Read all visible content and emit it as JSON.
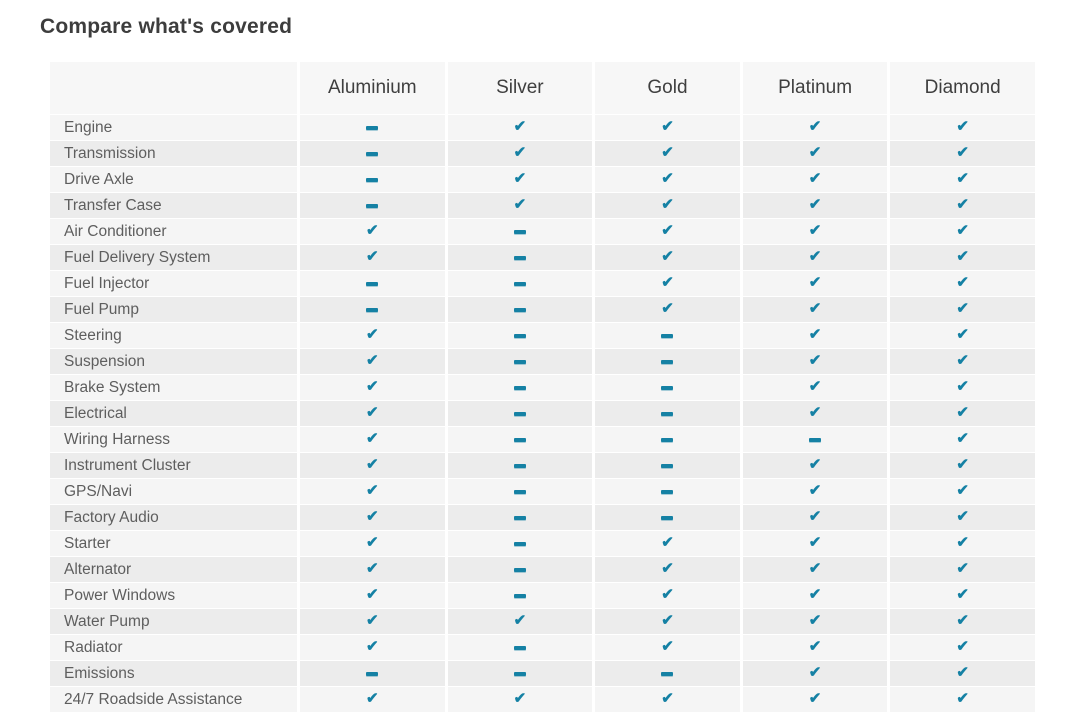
{
  "title": "Compare what's covered",
  "colors": {
    "accent": "#1581a4",
    "header_bg": "#f7f7f7",
    "row_light": "#f5f5f5",
    "row_dark": "#ececec"
  },
  "icons": {
    "check": "check-icon",
    "dash": "dash-icon",
    "check_glyph": "✔"
  },
  "table": {
    "columns": [
      "Aluminium",
      "Silver",
      "Gold",
      "Platinum",
      "Diamond"
    ],
    "rows": [
      {
        "label": "Engine",
        "values": [
          "dash",
          "check",
          "check",
          "check",
          "check"
        ]
      },
      {
        "label": "Transmission",
        "values": [
          "dash",
          "check",
          "check",
          "check",
          "check"
        ]
      },
      {
        "label": "Drive Axle",
        "values": [
          "dash",
          "check",
          "check",
          "check",
          "check"
        ]
      },
      {
        "label": "Transfer Case",
        "values": [
          "dash",
          "check",
          "check",
          "check",
          "check"
        ]
      },
      {
        "label": "Air Conditioner",
        "values": [
          "check",
          "dash",
          "check",
          "check",
          "check"
        ]
      },
      {
        "label": "Fuel Delivery System",
        "values": [
          "check",
          "dash",
          "check",
          "check",
          "check"
        ]
      },
      {
        "label": "Fuel Injector",
        "values": [
          "dash",
          "dash",
          "check",
          "check",
          "check"
        ]
      },
      {
        "label": "Fuel Pump",
        "values": [
          "dash",
          "dash",
          "check",
          "check",
          "check"
        ]
      },
      {
        "label": "Steering",
        "values": [
          "check",
          "dash",
          "dash",
          "check",
          "check"
        ]
      },
      {
        "label": "Suspension",
        "values": [
          "check",
          "dash",
          "dash",
          "check",
          "check"
        ]
      },
      {
        "label": "Brake System",
        "values": [
          "check",
          "dash",
          "dash",
          "check",
          "check"
        ]
      },
      {
        "label": "Electrical",
        "values": [
          "check",
          "dash",
          "dash",
          "check",
          "check"
        ]
      },
      {
        "label": "Wiring Harness",
        "values": [
          "check",
          "dash",
          "dash",
          "dash",
          "check"
        ]
      },
      {
        "label": "Instrument Cluster",
        "values": [
          "check",
          "dash",
          "dash",
          "check",
          "check"
        ]
      },
      {
        "label": "GPS/Navi",
        "values": [
          "check",
          "dash",
          "dash",
          "check",
          "check"
        ]
      },
      {
        "label": "Factory Audio",
        "values": [
          "check",
          "dash",
          "dash",
          "check",
          "check"
        ]
      },
      {
        "label": "Starter",
        "values": [
          "check",
          "dash",
          "check",
          "check",
          "check"
        ]
      },
      {
        "label": "Alternator",
        "values": [
          "check",
          "dash",
          "check",
          "check",
          "check"
        ]
      },
      {
        "label": "Power Windows",
        "values": [
          "check",
          "dash",
          "check",
          "check",
          "check"
        ]
      },
      {
        "label": "Water Pump",
        "values": [
          "check",
          "check",
          "check",
          "check",
          "check"
        ]
      },
      {
        "label": "Radiator",
        "values": [
          "check",
          "dash",
          "check",
          "check",
          "check"
        ]
      },
      {
        "label": "Emissions",
        "values": [
          "dash",
          "dash",
          "dash",
          "check",
          "check"
        ]
      },
      {
        "label": "24/7 Roadside Assistance",
        "values": [
          "check",
          "check",
          "check",
          "check",
          "check"
        ]
      }
    ]
  }
}
